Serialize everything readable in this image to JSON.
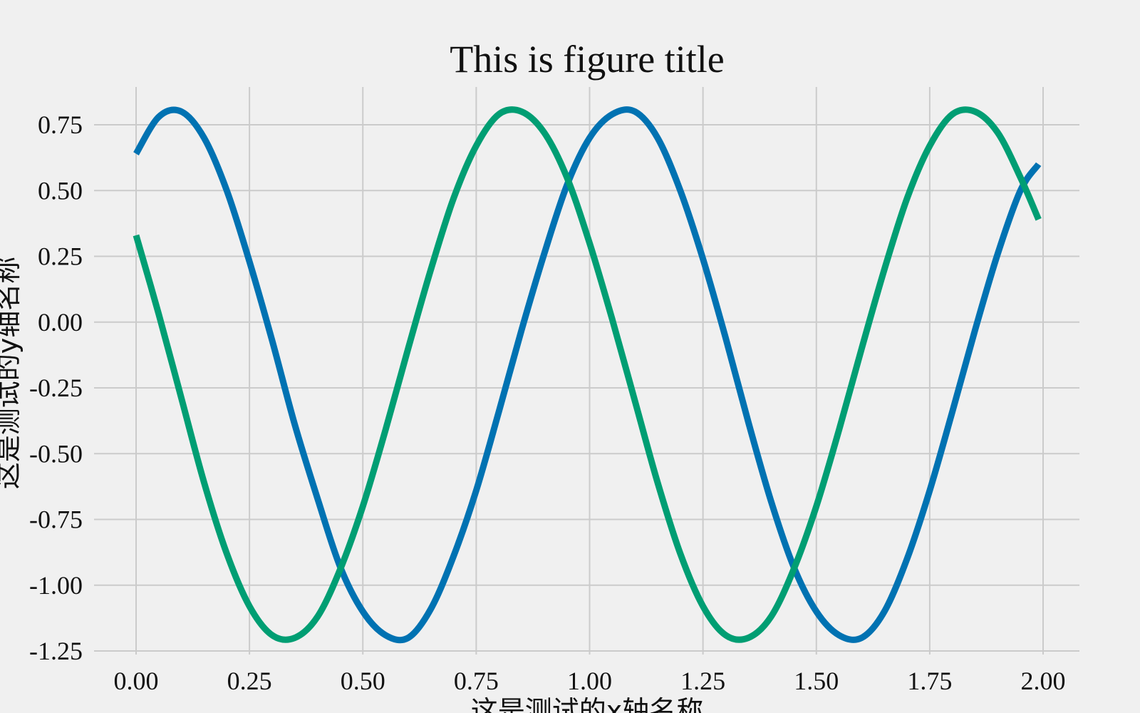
{
  "chart_data": {
    "type": "line",
    "title": "This is figure title",
    "xlabel": "这是测试的x轴名称",
    "ylabel": "这是测试的y轴名称",
    "xlim": [
      -0.1,
      2.08
    ],
    "ylim": [
      -1.25,
      0.8
    ],
    "grid": true,
    "background_color": "#f0f0f0",
    "grid_color": "#cbcbcb",
    "x_ticks": [
      0.0,
      0.25,
      0.5,
      0.75,
      1.0,
      1.25,
      1.5,
      1.75,
      2.0
    ],
    "x_tick_labels": [
      "0.00",
      "0.25",
      "0.50",
      "0.75",
      "1.00",
      "1.25",
      "1.50",
      "1.75",
      "2.00"
    ],
    "y_ticks": [
      0.75,
      0.5,
      0.25,
      0.0,
      -0.25,
      -0.5,
      -0.75,
      -1.0,
      -1.25
    ],
    "y_tick_labels": [
      "0.75",
      "0.50",
      "0.25",
      "0.00",
      "-0.25",
      "-0.50",
      "-0.75",
      "-1.00",
      "-1.25"
    ],
    "x": [
      0.0,
      0.05,
      0.1,
      0.15,
      0.2,
      0.25,
      0.3,
      0.35,
      0.4,
      0.45,
      0.5,
      0.55,
      0.6,
      0.65,
      0.7,
      0.75,
      0.8,
      0.85,
      0.9,
      0.95,
      1.0,
      1.05,
      1.1,
      1.15,
      1.2,
      1.25,
      1.3,
      1.35,
      1.4,
      1.45,
      1.5,
      1.55,
      1.6,
      1.65,
      1.7,
      1.75,
      1.8,
      1.85,
      1.9,
      1.95,
      1.99
    ],
    "series": [
      {
        "color": "#0072b2",
        "values": [
          0.64,
          0.78,
          0.8,
          0.7,
          0.5,
          0.23,
          -0.07,
          -0.39,
          -0.67,
          -0.93,
          -1.1,
          -1.19,
          -1.2,
          -1.09,
          -0.89,
          -0.64,
          -0.34,
          -0.03,
          0.26,
          0.52,
          0.7,
          0.79,
          0.8,
          0.7,
          0.5,
          0.24,
          -0.06,
          -0.38,
          -0.68,
          -0.93,
          -1.1,
          -1.19,
          -1.2,
          -1.1,
          -0.9,
          -0.64,
          -0.34,
          -0.03,
          0.26,
          0.5,
          0.6
        ]
      },
      {
        "color": "#009e73",
        "values": [
          0.33,
          0.03,
          -0.29,
          -0.61,
          -0.88,
          -1.08,
          -1.19,
          -1.2,
          -1.12,
          -0.94,
          -0.7,
          -0.41,
          -0.1,
          0.2,
          0.47,
          0.67,
          0.79,
          0.8,
          0.72,
          0.55,
          0.3,
          0.01,
          -0.3,
          -0.61,
          -0.88,
          -1.08,
          -1.19,
          -1.2,
          -1.12,
          -0.94,
          -0.7,
          -0.41,
          -0.1,
          0.2,
          0.47,
          0.67,
          0.79,
          0.8,
          0.72,
          0.55,
          0.39
        ]
      }
    ]
  }
}
